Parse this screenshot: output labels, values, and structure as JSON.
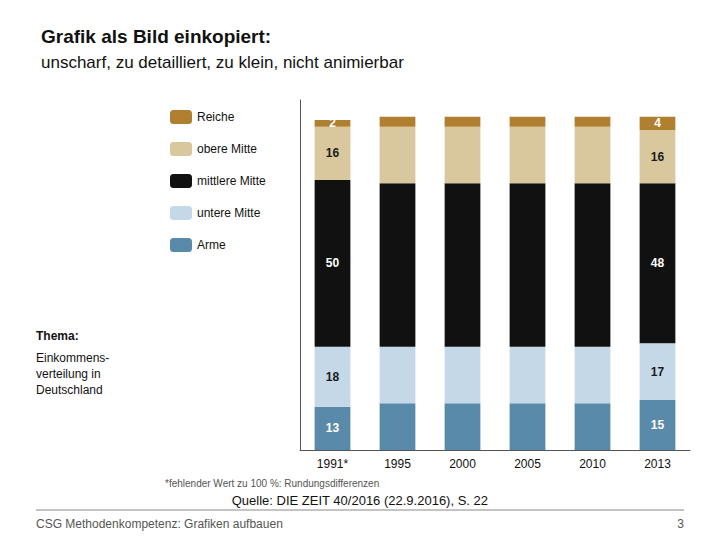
{
  "chart_data": {
    "type": "bar",
    "title": "Grafik als Bild einkopiert:",
    "subtitle": "unscharf, zu detailliert, zu klein, nicht animierbar",
    "annotations": [
      "Thema:",
      "Einkommens-\nverteilung in\nDeutschland",
      "*fehlender Wert zu 100 %: Rundungsdifferenzen",
      "Quelle: DIE ZEIT 40/2016 (22.9.2016), S. 22",
      "CSG Methodenkompetenz: Grafiken aufbauen",
      "3"
    ],
    "categories": [
      "1991*",
      "1995",
      "2000",
      "2005",
      "2010",
      "2013"
    ],
    "stacked": true,
    "series": [
      {
        "name": "Arme",
        "color": "#5a8aaa",
        "values": [
          13,
          14,
          14,
          14,
          14,
          15
        ],
        "value_labels": [
          "13",
          null,
          null,
          null,
          null,
          "15"
        ]
      },
      {
        "name": "untere Mitte",
        "color": "#c5d8e8",
        "values": [
          18,
          17,
          17,
          17,
          17,
          17
        ],
        "value_labels": [
          "18",
          null,
          null,
          null,
          null,
          "17"
        ]
      },
      {
        "name": "mittlere Mitte",
        "color": "#111111",
        "values": [
          50,
          49,
          49,
          49,
          49,
          48
        ],
        "value_labels": [
          "50",
          null,
          null,
          null,
          null,
          "48"
        ]
      },
      {
        "name": "obere Mitte",
        "color": "#d9c89e",
        "values": [
          16,
          17,
          17,
          17,
          17,
          16
        ],
        "value_labels": [
          "16",
          null,
          null,
          null,
          null,
          "16"
        ]
      },
      {
        "name": "Reiche",
        "color": "#b08030",
        "values": [
          2,
          3,
          3,
          3,
          3,
          4
        ],
        "value_labels": [
          "2",
          null,
          null,
          null,
          null,
          "4"
        ]
      }
    ],
    "ylim": [
      0,
      105
    ],
    "yticks": [],
    "tick_labels": "x",
    "grid": false,
    "legend": "upper left"
  }
}
